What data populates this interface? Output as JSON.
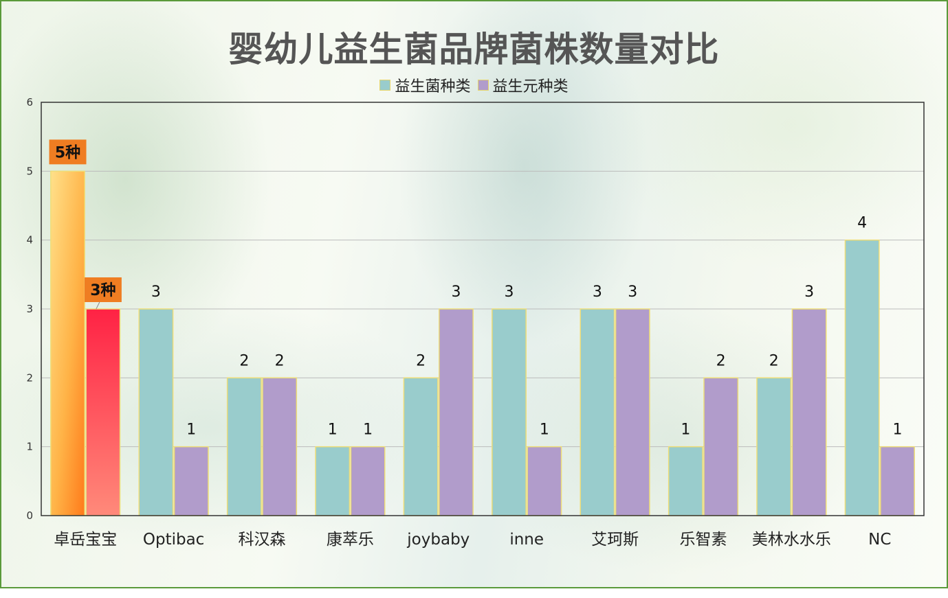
{
  "colors": {
    "probiotic": "#99cccc",
    "prebiotic": "#b19ccb",
    "bar_border": "#eedd77",
    "highlight_label_bg": "#ef7d22",
    "axis": "#333333",
    "grid": "#bbbbbb"
  },
  "chart_data": {
    "type": "bar",
    "title": "婴幼儿益生菌品牌菌株数量对比",
    "xlabel": "",
    "ylabel": "",
    "ylim": [
      0,
      6
    ],
    "yticks": [
      0,
      1,
      2,
      3,
      4,
      5,
      6
    ],
    "grid": true,
    "legend_position": "top-center",
    "categories": [
      "卓岳宝宝",
      "Optibac",
      "科汉森",
      "康萃乐",
      "joybaby",
      "inne",
      "艾珂斯",
      "乐智素",
      "美林水水乐",
      "NC"
    ],
    "series": [
      {
        "name": "益生菌种类",
        "values": [
          5,
          3,
          2,
          1,
          2,
          3,
          3,
          1,
          2,
          4
        ]
      },
      {
        "name": "益生元种类",
        "values": [
          3,
          1,
          2,
          1,
          3,
          1,
          3,
          2,
          3,
          1
        ]
      }
    ],
    "highlight": {
      "category_index": 0,
      "labels": [
        "5种",
        "3种"
      ]
    }
  }
}
